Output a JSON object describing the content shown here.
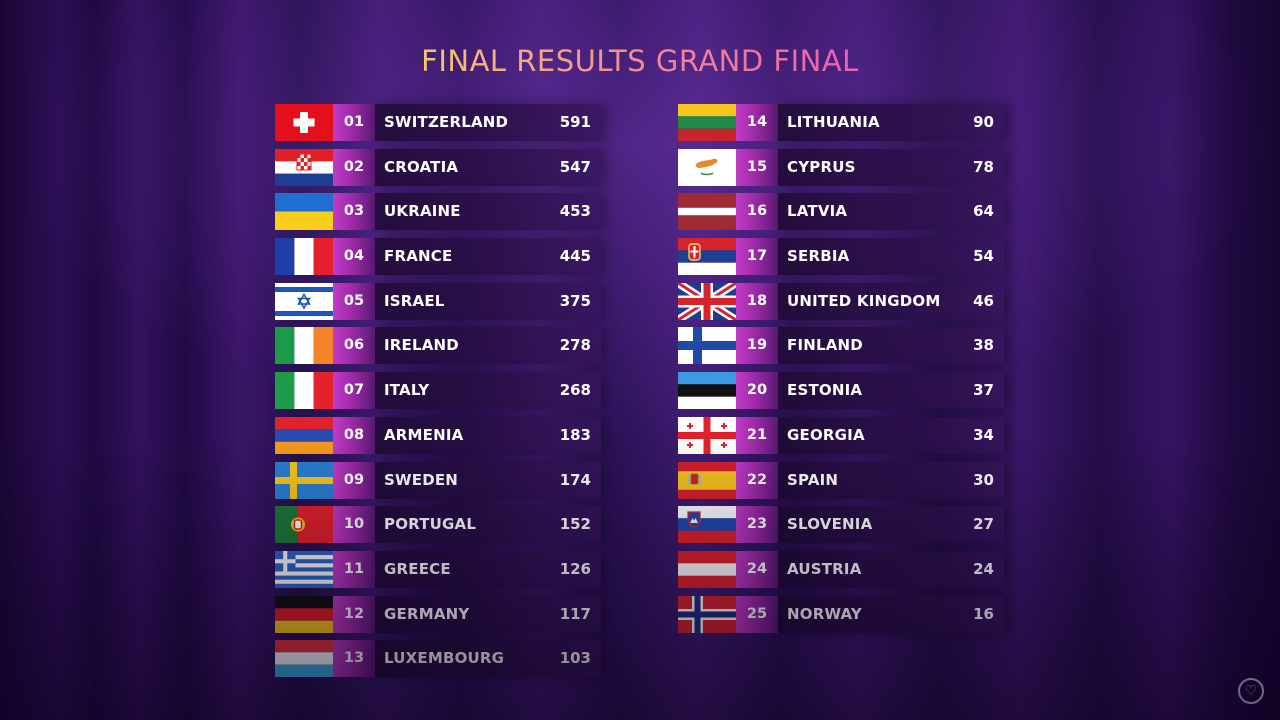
{
  "header": {
    "title": "FINAL RESULTS GRAND FINAL"
  },
  "results": [
    {
      "rank": "01",
      "country": "SWITZERLAND",
      "points": "591",
      "flag": "switzerland-flag-icon"
    },
    {
      "rank": "02",
      "country": "CROATIA",
      "points": "547",
      "flag": "croatia-flag-icon"
    },
    {
      "rank": "03",
      "country": "UKRAINE",
      "points": "453",
      "flag": "ukraine-flag-icon"
    },
    {
      "rank": "04",
      "country": "FRANCE",
      "points": "445",
      "flag": "france-flag-icon"
    },
    {
      "rank": "05",
      "country": "ISRAEL",
      "points": "375",
      "flag": "israel-flag-icon"
    },
    {
      "rank": "06",
      "country": "IRELAND",
      "points": "278",
      "flag": "ireland-flag-icon"
    },
    {
      "rank": "07",
      "country": "ITALY",
      "points": "268",
      "flag": "italy-flag-icon"
    },
    {
      "rank": "08",
      "country": "ARMENIA",
      "points": "183",
      "flag": "armenia-flag-icon"
    },
    {
      "rank": "09",
      "country": "SWEDEN",
      "points": "174",
      "flag": "sweden-flag-icon"
    },
    {
      "rank": "10",
      "country": "PORTUGAL",
      "points": "152",
      "flag": "portugal-flag-icon"
    },
    {
      "rank": "11",
      "country": "GREECE",
      "points": "126",
      "flag": "greece-flag-icon"
    },
    {
      "rank": "12",
      "country": "GERMANY",
      "points": "117",
      "flag": "germany-flag-icon"
    },
    {
      "rank": "13",
      "country": "LUXEMBOURG",
      "points": "103",
      "flag": "luxembourg-flag-icon"
    },
    {
      "rank": "14",
      "country": "LITHUANIA",
      "points": "90",
      "flag": "lithuania-flag-icon"
    },
    {
      "rank": "15",
      "country": "CYPRUS",
      "points": "78",
      "flag": "cyprus-flag-icon"
    },
    {
      "rank": "16",
      "country": "LATVIA",
      "points": "64",
      "flag": "latvia-flag-icon"
    },
    {
      "rank": "17",
      "country": "SERBIA",
      "points": "54",
      "flag": "serbia-flag-icon"
    },
    {
      "rank": "18",
      "country": "UNITED KINGDOM",
      "points": "46",
      "flag": "united-kingdom-flag-icon"
    },
    {
      "rank": "19",
      "country": "FINLAND",
      "points": "38",
      "flag": "finland-flag-icon"
    },
    {
      "rank": "20",
      "country": "ESTONIA",
      "points": "37",
      "flag": "estonia-flag-icon"
    },
    {
      "rank": "21",
      "country": "GEORGIA",
      "points": "34",
      "flag": "georgia-flag-icon"
    },
    {
      "rank": "22",
      "country": "SPAIN",
      "points": "30",
      "flag": "spain-flag-icon"
    },
    {
      "rank": "23",
      "country": "SLOVENIA",
      "points": "27",
      "flag": "slovenia-flag-icon"
    },
    {
      "rank": "24",
      "country": "AUSTRIA",
      "points": "24",
      "flag": "austria-flag-icon"
    },
    {
      "rank": "25",
      "country": "NORWAY",
      "points": "16",
      "flag": "norway-flag-icon"
    }
  ],
  "footer": {
    "icon": "heart-logo-icon"
  }
}
